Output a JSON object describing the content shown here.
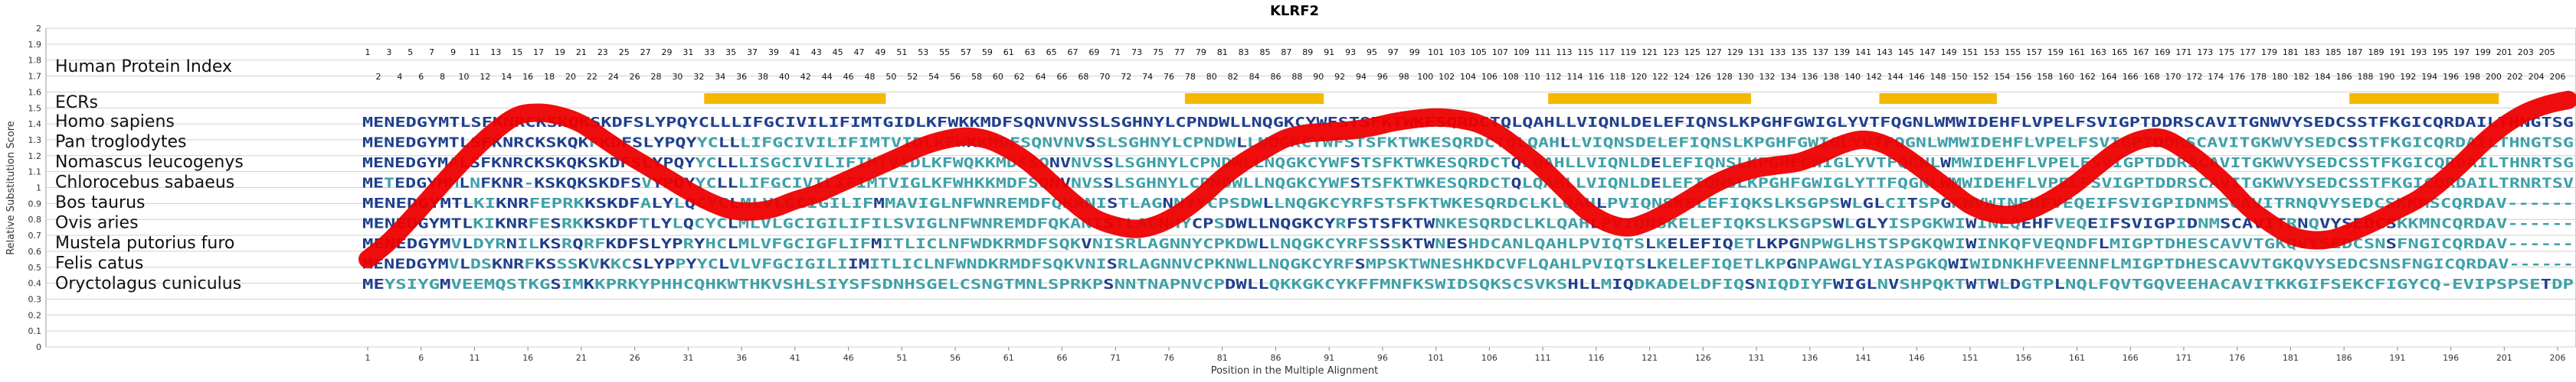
{
  "chart_data": {
    "type": "line",
    "title": "KLRF2",
    "xlabel": "Position in the Multiple Alignment",
    "ylabel": "Relative Substitution Score",
    "ylim": [
      0,
      2
    ],
    "xlim": [
      1,
      207
    ],
    "grid": true,
    "legend": "none",
    "yticks": [
      "0",
      "0.1",
      "0.2",
      "0.3",
      "0.4",
      "0.5",
      "0.6",
      "0.7",
      "0.8",
      "0.9",
      "1",
      "1.1",
      "1.2",
      "1.3",
      "1.4",
      "1.5",
      "1.6",
      "1.7",
      "1.8",
      "1.9",
      "2"
    ],
    "xticks": [
      1,
      6,
      11,
      16,
      21,
      26,
      31,
      36,
      41,
      46,
      51,
      56,
      61,
      66,
      71,
      76,
      81,
      86,
      91,
      96,
      101,
      106,
      111,
      116,
      121,
      126,
      131,
      136,
      141,
      146,
      151,
      156,
      161,
      166,
      171,
      176,
      181,
      186,
      191,
      196,
      201,
      206
    ],
    "index_label": "Human Protein Index",
    "index_odd": [
      1,
      3,
      5,
      7,
      9,
      11,
      13,
      15,
      17,
      19,
      21,
      23,
      25,
      27,
      29,
      31,
      33,
      35,
      37,
      39,
      41,
      43,
      45,
      47,
      49,
      51,
      53,
      55,
      57,
      59,
      61,
      63,
      65,
      67,
      69,
      71,
      73,
      75,
      77,
      79,
      81,
      83,
      85,
      87,
      89,
      91,
      93,
      95,
      97,
      99,
      101,
      103,
      105,
      107,
      109,
      111,
      113,
      115,
      117,
      119,
      121,
      123,
      125,
      127,
      129,
      131,
      133,
      135,
      137,
      139,
      141,
      143,
      145,
      147,
      149,
      151,
      153,
      155,
      157,
      159,
      161,
      163,
      165,
      167,
      169,
      171,
      173,
      175,
      177,
      179,
      181,
      183,
      185,
      187,
      189,
      191,
      193,
      195,
      197,
      199,
      201,
      203,
      205
    ],
    "index_even": [
      2,
      4,
      6,
      8,
      10,
      12,
      14,
      16,
      18,
      20,
      22,
      24,
      26,
      28,
      30,
      32,
      34,
      36,
      38,
      40,
      42,
      44,
      46,
      48,
      50,
      52,
      54,
      56,
      58,
      60,
      62,
      64,
      66,
      68,
      70,
      72,
      74,
      76,
      78,
      80,
      82,
      84,
      86,
      88,
      90,
      92,
      94,
      96,
      98,
      100,
      102,
      104,
      106,
      108,
      110,
      112,
      114,
      116,
      118,
      120,
      122,
      124,
      126,
      128,
      130,
      132,
      134,
      136,
      138,
      140,
      142,
      144,
      146,
      148,
      150,
      152,
      154,
      156,
      158,
      160,
      162,
      164,
      166,
      168,
      170,
      172,
      174,
      176,
      178,
      180,
      182,
      184,
      186,
      188,
      190,
      192,
      194,
      196,
      198,
      200,
      202,
      204,
      206
    ],
    "ecr_label": "ECRs",
    "ecrs": [
      [
        33,
        49
      ],
      [
        78,
        90
      ],
      [
        112,
        130
      ],
      [
        143,
        153
      ],
      [
        187,
        200
      ]
    ],
    "sequences": [
      {
        "name": "Homo sapiens",
        "seq": "MENEDGYMTLSFKNRCKSKQKSKDFSLYPQYCLLLIFGCIVILIFIMTGIDLKFWKKMDFSQNVNVSSLSGHNYLCPNDWLLNQGKCYWFSTSFKTWKESQRDCTQLQAHLLVIQNLDELEFIQNSLKPGHFGWIGLYVTFQGNLWMWIDEHFLVPELFSVIGPTDDRSCAVITGNWVYSEDCSSTFKGICQRDAILTHNGTSG"
      },
      {
        "name": "Pan troglodytes",
        "seq": "MENEDGYMTLSFKNRCKSKQKFKDFSLYPQYYCLLLIFGCIVILIFIMTVIDLKFWKKMDFSQNVNVSSLSGHNYLCPNDWLLNQGKCYWFSTSFKTWKESQRDCTQLQAHLLVIQNSDELEFIQNSLKPGHFGWIGLYVTFQGNLWMWIDEHFLVPELFSVIGPTDDRSCAVITGKWVYSEDCSSTFKGICQRDAILTHNGTSG"
      },
      {
        "name": "Nomascus leucogenys",
        "seq": "MENEDGYMALSFKNRCKSKQKSKDFSLYPQYYCLLLISGCIVILIFIMTVIDLKFWQKKMDFSQNVNVSSLSGHNYLCPNDWLLNQGKCYWFSTSFKTWKESQRDCTQLQAHLLVIQNLDELEFIQNSLKPGHFGWIGLYVTFQGNLWMWIDEHFLVPELFSVIGPTDDRSCAVITGKWVYSEDCSSTFKGICQRDAILTHNRTSG"
      },
      {
        "name": "Chlorocebus sabaeus",
        "seq": "METEDGYMMLNFKNR-KSKQKSKDFSVYPQYYCLLLIFGCIVILIFIMTVIGLKFWHKKMDFSQNVNVSSLSGHNYLCPNDWLLNQGKCYWFSTSFKTWKESQRDCTQLQAHLLVIQNLDELEFIQNSLKPGHFGWIGLYTTFQGNLWMWIDEHFLVPELFSVIGPTDDRSCAVITGKWVYSEDCSSTFKGICQRDAILTRNRTSV"
      },
      {
        "name": "Bos taurus",
        "seq": "MENEDGYMTLKIKNRFEPRKKSKDFALYLQCYCLMLVLGCIGILIFMMAVIGLNFWNREMDFQKANISTLAGNNYYCPSDWLLNQGKCYRFSTSFKTWKESQRDCLKLQAHLPVIQNSKELEFIQKSLKSGPSWLGLCITSPGKWVWINEHFVEQEIFSVIGPIDNMSCAVITRNQVYSEDCSKKMSCQRDAV------"
      },
      {
        "name": "Ovis aries",
        "seq": "MENEDGYMTLKIKNRFESRKKSKDFTLYLQCYCLMLVLGCIGILIFILSVIGLNFWNREMDFQKANISTLAGNHYCPSDWLLNQGKCYRFSTSFKTWNKESQRDCLKLQAHLPVIQNSKELEFIQKSLKSGPSWLGLYISPGKWIWINEQEHFVEQEIFSVIGPIDNMSCAVITRNQVYSEDCSKKMNCQRDAV------"
      },
      {
        "name": "Mustela putorius furo",
        "seq": "MENEDGYMVLDYRNILKSRQRFKDFSLYPRYHCLMLVFGCIGFLIFMITLICLNFWDKRMDFSQKVNISRLAGNNYCPKDWLLNQGKCYRFSSSKTWNESHDCANLQAHLPVIQTSLKELEFIQETLKPGNPWGLHSTSPGKQWIWINKQFVEQNDFLMIGPTDHESCAVVTGKQVYSEDCSNSFNGICQRDAV------"
      },
      {
        "name": "Felis catus",
        "seq": "MENEDGYMVLDSKNRFKSSSKVKKCSLYPPYYCLVLVFGCIGILIIMITLICLNFWNDKRMDFSQKVNISRLAGNNVCPKNWLLNQGKCYRFSMPSKTWNESHKDCVFLQAHLPVIQTSLKELEFIQETLKPGNPAWGLYIASPGKQWIWIDNKHFVEENNFLMIGPTDHESCAVVTGKQVYSEDCSNSFNGICQRDAV------"
      },
      {
        "name": "Oryctolagus cuniculus",
        "seq": "MEYSIYGMVEEMQSTKGSIMKKPRKYPHHCQHKWTHKVSHLSIYSFSDNHSGELCSNGTMNLSPRKPSNNTNAPNVCPDWLLQKKGKCYKFFMNFKSWIDSQKSCSVKSHLLMIQDKADELDFIQSNIQDIYFWIGLNVSHPQKTWTWLDGTPLNQLFQVTGQVEEHACAVITKKGIFSEKCFIGYCQ-EVIPSPSETDP"
      }
    ],
    "series": [
      {
        "x": [
          1,
          3,
          5,
          7,
          9,
          11,
          13,
          15,
          17,
          19,
          21,
          23,
          25,
          27,
          29,
          31,
          33,
          35,
          37,
          39,
          41,
          43,
          45,
          47,
          49,
          51,
          53,
          55,
          57,
          59,
          61,
          63,
          65,
          67,
          69,
          71,
          73,
          75,
          77,
          79,
          81,
          83,
          85,
          87,
          89,
          91,
          93,
          95,
          97,
          99,
          101,
          103,
          105,
          107,
          109,
          111,
          113,
          115,
          117,
          119,
          121,
          123,
          125,
          127,
          129,
          131,
          133,
          135,
          137,
          139,
          141,
          143,
          145,
          147,
          149,
          151,
          153,
          155,
          157,
          159,
          161,
          163,
          165,
          167,
          169,
          171,
          173,
          175,
          177,
          179,
          181,
          183,
          185,
          187,
          189,
          191,
          193,
          195,
          197,
          199,
          201,
          203,
          205,
          207
        ],
        "values": [
          0.55,
          0.66,
          0.8,
          0.95,
          1.1,
          1.24,
          1.36,
          1.45,
          1.47,
          1.45,
          1.4,
          1.31,
          1.22,
          1.14,
          1.06,
          0.98,
          0.91,
          0.86,
          0.85,
          0.87,
          0.92,
          0.96,
          1.02,
          1.08,
          1.14,
          1.2,
          1.26,
          1.3,
          1.32,
          1.3,
          1.24,
          1.15,
          1.03,
          0.91,
          0.81,
          0.76,
          0.74,
          0.77,
          0.84,
          0.94,
          1.06,
          1.16,
          1.24,
          1.31,
          1.34,
          1.35,
          1.36,
          1.38,
          1.41,
          1.43,
          1.44,
          1.43,
          1.4,
          1.33,
          1.23,
          1.12,
          0.99,
          0.86,
          0.78,
          0.75,
          0.79,
          0.86,
          0.94,
          1.02,
          1.08,
          1.12,
          1.14,
          1.16,
          1.21,
          1.27,
          1.3,
          1.27,
          1.19,
          1.09,
          0.99,
          0.89,
          0.84,
          0.83,
          0.87,
          0.94,
          1.03,
          1.14,
          1.24,
          1.3,
          1.31,
          1.24,
          1.14,
          1.02,
          0.88,
          0.78,
          0.7,
          0.67,
          0.68,
          0.73,
          0.79,
          0.86,
          0.93,
          1.03,
          1.15,
          1.28,
          1.39,
          1.47,
          1.52,
          1.55
        ]
      }
    ],
    "colors": {
      "line": "#ee0000",
      "ecr": "#f5b800",
      "conserved": "#1f3f8c",
      "variable": "#3fa0a8",
      "grid": "#d0d0d0",
      "axis": "#888888"
    }
  }
}
